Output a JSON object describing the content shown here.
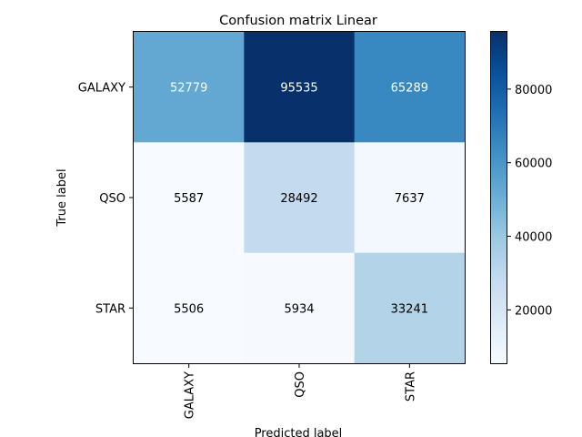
{
  "chart_data": {
    "type": "heatmap",
    "title": "Confusion matrix Linear",
    "xlabel": "Predicted label",
    "ylabel": "True label",
    "x_categories": [
      "GALAXY",
      "QSO",
      "STAR"
    ],
    "y_categories": [
      "GALAXY",
      "QSO",
      "STAR"
    ],
    "values": [
      [
        52779,
        95535,
        65289
      ],
      [
        5587,
        28492,
        7637
      ],
      [
        5506,
        5934,
        33241
      ]
    ],
    "colorbar": {
      "range": [
        5506,
        95535
      ],
      "ticks": [
        20000,
        40000,
        60000,
        80000
      ],
      "tick_labels": [
        "20000",
        "40000",
        "60000",
        "80000"
      ]
    },
    "colormap": "Blues"
  }
}
